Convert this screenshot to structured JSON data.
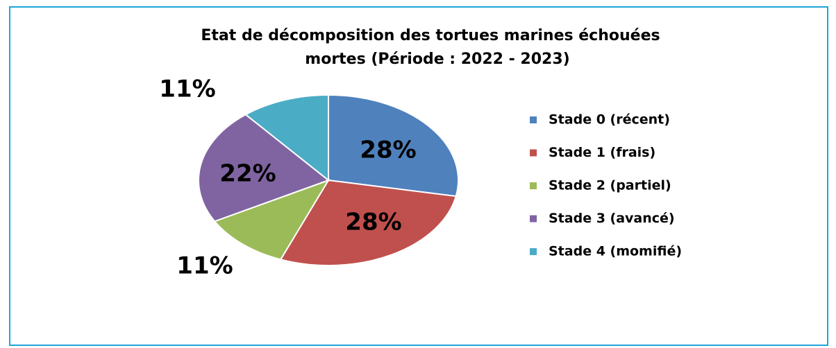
{
  "chart_data": {
    "type": "pie",
    "title": [
      "Etat de décomposition  des tortues marines échouées",
      "mortes (Période : 2022 - 2023)"
    ],
    "categories": [
      "Stade 0 (récent)",
      "Stade 1 (frais)",
      "Stade 2 (partiel)",
      "Stade 3 (avancé)",
      "Stade 4 (momifié)"
    ],
    "values": [
      28,
      28,
      11,
      22,
      11
    ],
    "value_labels": [
      "28%",
      "28%",
      "11%",
      "22%",
      "11%"
    ],
    "colors": [
      "#4f81bd",
      "#c0504d",
      "#9bbb59",
      "#8064a2",
      "#4bacc6"
    ],
    "legend": "right"
  }
}
